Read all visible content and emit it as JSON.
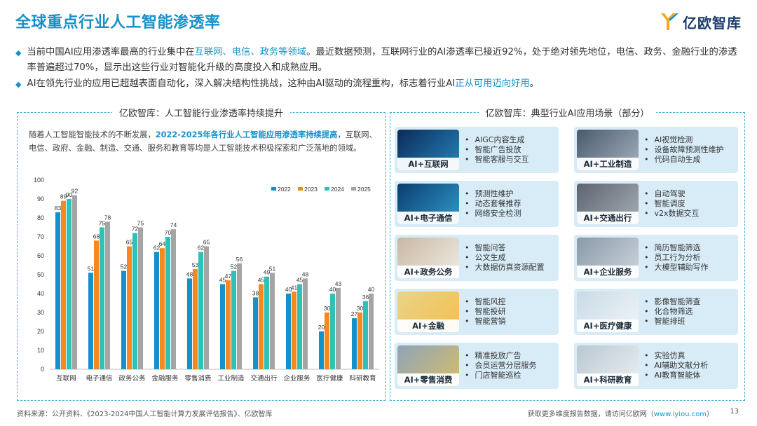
{
  "title": "全球重点行业人工智能渗透率",
  "logo": {
    "text": "亿欧智库"
  },
  "bullets": [
    {
      "parts": [
        {
          "t": "当前中国AI应用渗透率最高的行业集中在",
          "hl": false
        },
        {
          "t": "互联网、电信、政务等领域",
          "hl": true
        },
        {
          "t": "。最近数据预测，互联网行业的AI渗透率已接近92%，处于绝对领先地位，电信、政务、金融行业的渗透率普遍超过70%，显示出这些行业对智能化升级的高度投入和成熟应用。",
          "hl": false
        }
      ]
    },
    {
      "parts": [
        {
          "t": "AI在领先行业的应用已超越表面自动化，深入解决结构性挑战，这种由AI驱动的流程重构，标志着行业AI",
          "hl": false
        },
        {
          "t": "正从可用迈向好用",
          "hl": true
        },
        {
          "t": "。",
          "hl": false
        }
      ]
    }
  ],
  "left_panel": {
    "title": "亿欧智库：人工智能行业渗透率持续提升",
    "intro_a": "随着人工智能智能技术的不断发展，",
    "intro_hl": "2022-2025年各行业人工智能应用渗透率持续提高",
    "intro_b": "，互联网、电信、政府、金融、制造、交通、服务和教育等均是人工智能技术积极探索和广泛落地的领域。"
  },
  "chart_data": {
    "type": "bar",
    "categories": [
      "互联网",
      "电子通信",
      "政务公务",
      "金融服务",
      "零售消费",
      "工业制造",
      "交通出行",
      "企业服务",
      "医疗健康",
      "科研教育"
    ],
    "series": [
      {
        "name": "2022",
        "color": "#1591c9",
        "values": [
          83,
          51,
          52,
          62,
          48,
          45,
          38,
          40,
          20,
          27
        ]
      },
      {
        "name": "2023",
        "color": "#f5891f",
        "values": [
          89,
          68,
          65,
          64,
          53,
          47,
          45,
          41,
          30,
          30
        ]
      },
      {
        "name": "2024",
        "color": "#2fc1b6",
        "values": [
          90,
          75,
          72,
          70,
          62,
          52,
          49,
          45,
          40,
          36
        ]
      },
      {
        "name": "2025",
        "color": "#a5a5a5",
        "values": [
          92,
          78,
          75,
          74,
          65,
          56,
          51,
          48,
          43,
          40
        ]
      }
    ],
    "yticks": [
      0,
      10,
      20,
      30,
      40,
      50,
      60,
      70,
      80,
      90,
      100
    ],
    "ylim": [
      0,
      100
    ],
    "legend": "top-right",
    "grid": false
  },
  "right_panel": {
    "title": "亿欧智库：典型行业AI应用场景（部分）",
    "cards": [
      {
        "label": "AI+互联网",
        "items": [
          "AIGC内容生成",
          "智能广告投放",
          "智能客服与交互"
        ],
        "bg": "#0b2b5a",
        "accent": "#2fa8e0"
      },
      {
        "label": "AI+工业制造",
        "items": [
          "AI视觉检测",
          "设备故障预测性维护",
          "代码自动生成"
        ],
        "bg": "#4a5a6e",
        "accent": "#c9d3de"
      },
      {
        "label": "AI+电子通信",
        "items": [
          "预测性维护",
          "动态套餐推荐",
          "网络安全检测"
        ],
        "bg": "#0a3d6e",
        "accent": "#3ec1f0"
      },
      {
        "label": "AI+交通出行",
        "items": [
          "自动驾驶",
          "智能调度",
          "v2x数据交互"
        ],
        "bg": "#5c6470",
        "accent": "#c7cbd2"
      },
      {
        "label": "AI+政务公务",
        "items": [
          "智能问答",
          "公文生成",
          "大数据仿真资源配置"
        ],
        "bg": "#c9b9a3",
        "accent": "#ffffff"
      },
      {
        "label": "AI+企业服务",
        "items": [
          "简历智能筛选",
          "员工行为分析",
          "大模型辅助写作"
        ],
        "bg": "#8a9aa8",
        "accent": "#e8eef3"
      },
      {
        "label": "AI+金融",
        "items": [
          "智能风控",
          "智能投研",
          "智能营销"
        ],
        "bg": "#e9d48a",
        "accent": "#f7b733"
      },
      {
        "label": "AI+医疗健康",
        "items": [
          "影像智能筛查",
          "化合物筛选",
          "智能排班"
        ],
        "bg": "#c9dbe6",
        "accent": "#ffffff"
      },
      {
        "label": "AI+零售消费",
        "items": [
          "精准投放广告",
          "会员运营分层服务",
          "门店智能巡检"
        ],
        "bg": "#8fa3b8",
        "accent": "#f2c94c"
      },
      {
        "label": "AI+科研教育",
        "items": [
          "实验仿真",
          "AI辅助文献分析",
          "AI教育智能体"
        ],
        "bg": "#b9c8d3",
        "accent": "#ffffff"
      }
    ]
  },
  "footer": {
    "source": "资料来源：公开资料、《2023-2024中国人工智能计算力发展评估报告》、亿欧智库",
    "more_a": "获取更多维度报告数据，请访问亿欧网（",
    "more_link": "www.iyiou.com",
    "more_b": "）",
    "page": "13"
  }
}
